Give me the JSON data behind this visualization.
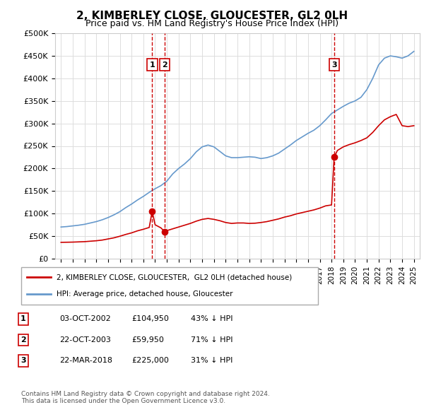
{
  "title": "2, KIMBERLEY CLOSE, GLOUCESTER, GL2 0LH",
  "subtitle": "Price paid vs. HM Land Registry's House Price Index (HPI)",
  "ylabel_ticks": [
    "£0",
    "£50K",
    "£100K",
    "£150K",
    "£200K",
    "£250K",
    "£300K",
    "£350K",
    "£400K",
    "£450K",
    "£500K"
  ],
  "ytick_values": [
    0,
    50000,
    100000,
    150000,
    200000,
    250000,
    300000,
    350000,
    400000,
    450000,
    500000
  ],
  "ylim": [
    0,
    500000
  ],
  "xlim_start": 1994.5,
  "xlim_end": 2025.5,
  "xtick_years": [
    1995,
    1996,
    1997,
    1998,
    1999,
    2000,
    2001,
    2002,
    2003,
    2004,
    2005,
    2006,
    2007,
    2008,
    2009,
    2010,
    2011,
    2012,
    2013,
    2014,
    2015,
    2016,
    2017,
    2018,
    2019,
    2020,
    2021,
    2022,
    2023,
    2024,
    2025
  ],
  "hpi_color": "#6699cc",
  "property_color": "#cc0000",
  "sale_marker_color": "#cc0000",
  "sales": [
    {
      "num": 1,
      "year": 2002.75,
      "price": 104950,
      "date": "03-OCT-2002",
      "pct": "43% ↓ HPI"
    },
    {
      "num": 2,
      "year": 2003.8,
      "price": 59950,
      "date": "22-OCT-2003",
      "pct": "71% ↓ HPI"
    },
    {
      "num": 3,
      "year": 2018.22,
      "price": 225000,
      "date": "22-MAR-2018",
      "pct": "31% ↓ HPI"
    }
  ],
  "legend_property": "2, KIMBERLEY CLOSE, GLOUCESTER,  GL2 0LH (detached house)",
  "legend_hpi": "HPI: Average price, detached house, Gloucester",
  "footer": "Contains HM Land Registry data © Crown copyright and database right 2024.\nThis data is licensed under the Open Government Licence v3.0.",
  "table_rows": [
    {
      "num": 1,
      "date": "03-OCT-2002",
      "price": "£104,950",
      "pct": "43% ↓ HPI"
    },
    {
      "num": 2,
      "date": "22-OCT-2003",
      "price": "£59,950",
      "pct": "71% ↓ HPI"
    },
    {
      "num": 3,
      "date": "22-MAR-2018",
      "price": "£225,000",
      "pct": "31% ↓ HPI"
    }
  ],
  "hpi_x": [
    1995,
    1995.5,
    1996,
    1996.5,
    1997,
    1997.5,
    1998,
    1998.5,
    1999,
    1999.5,
    2000,
    2000.5,
    2001,
    2001.5,
    2002,
    2002.5,
    2003,
    2003.5,
    2004,
    2004.5,
    2005,
    2005.5,
    2006,
    2006.5,
    2007,
    2007.5,
    2008,
    2008.5,
    2009,
    2009.5,
    2010,
    2010.5,
    2011,
    2011.5,
    2012,
    2012.5,
    2013,
    2013.5,
    2014,
    2014.5,
    2015,
    2015.5,
    2016,
    2016.5,
    2017,
    2017.5,
    2018,
    2018.5,
    2019,
    2019.5,
    2020,
    2020.5,
    2021,
    2021.5,
    2022,
    2022.5,
    2023,
    2023.5,
    2024,
    2024.5,
    2025
  ],
  "hpi_y": [
    70000,
    71000,
    72500,
    74000,
    76000,
    79000,
    82000,
    86000,
    91000,
    97000,
    104000,
    113000,
    121000,
    130000,
    138000,
    147000,
    155000,
    162000,
    172000,
    188000,
    200000,
    210000,
    222000,
    237000,
    248000,
    252000,
    248000,
    238000,
    228000,
    224000,
    224000,
    225000,
    226000,
    225000,
    222000,
    224000,
    228000,
    234000,
    243000,
    252000,
    262000,
    270000,
    278000,
    285000,
    295000,
    308000,
    322000,
    330000,
    338000,
    345000,
    350000,
    358000,
    375000,
    400000,
    430000,
    445000,
    450000,
    448000,
    445000,
    450000,
    460000
  ],
  "property_x": [
    1995,
    1995.5,
    1996,
    1996.5,
    1997,
    1997.5,
    1998,
    1998.5,
    1999,
    1999.5,
    2000,
    2000.5,
    2001,
    2001.5,
    2002,
    2002.5,
    2002.75,
    2003,
    2003.5,
    2003.8,
    2004,
    2004.5,
    2005,
    2005.5,
    2006,
    2006.5,
    2007,
    2007.5,
    2008,
    2008.5,
    2009,
    2009.5,
    2010,
    2010.5,
    2011,
    2011.5,
    2012,
    2012.5,
    2013,
    2013.5,
    2014,
    2014.5,
    2015,
    2015.5,
    2016,
    2016.5,
    2017,
    2017.5,
    2018,
    2018.22,
    2018.5,
    2019,
    2019.5,
    2020,
    2020.5,
    2021,
    2021.5,
    2022,
    2022.5,
    2023,
    2023.5,
    2024,
    2024.5,
    2025
  ],
  "property_y": [
    36000,
    36200,
    36500,
    37000,
    37500,
    38500,
    39500,
    41000,
    43500,
    46000,
    49500,
    53500,
    57000,
    61500,
    65000,
    69000,
    104950,
    75000,
    68000,
    59950,
    62000,
    66000,
    70000,
    74000,
    78000,
    83000,
    87000,
    89000,
    87000,
    84000,
    80000,
    78000,
    79000,
    79000,
    78000,
    78500,
    80000,
    82000,
    85000,
    88000,
    92000,
    95000,
    99000,
    102000,
    105000,
    108000,
    112000,
    117000,
    119000,
    225000,
    240000,
    248000,
    253000,
    257000,
    262000,
    268000,
    280000,
    295000,
    308000,
    315000,
    320000,
    295000,
    293000,
    295000
  ]
}
